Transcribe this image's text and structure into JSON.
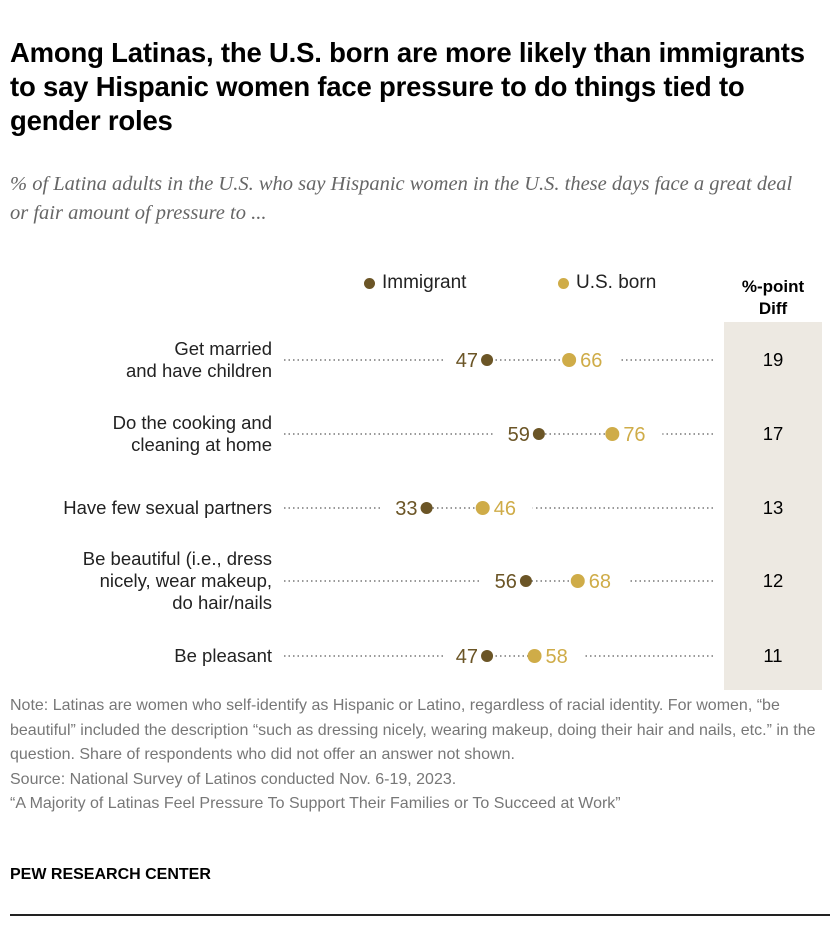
{
  "title": "Among Latinas, the U.S. born are more likely than immigrants to say Hispanic women face pressure to do things tied to gender roles",
  "subtitle": "% of Latina adults in the U.S. who say Hispanic women in the U.S. these days face a great deal or fair amount of pressure to ...",
  "chart_data": {
    "type": "dot",
    "xlim": [
      0,
      100
    ],
    "colors": {
      "Immigrant": "#6b5526",
      "U.S. born": "#cfac48",
      "diff_bg": "#ede9e2"
    },
    "legend": [
      "Immigrant",
      "U.S. born"
    ],
    "diff_header": [
      "%-point",
      "Diff"
    ],
    "categories": [
      {
        "label": [
          "Get married",
          "and have children"
        ],
        "immigrant": 47,
        "us_born": 66,
        "diff": 19
      },
      {
        "label": [
          "Do the cooking and",
          "cleaning at home"
        ],
        "immigrant": 59,
        "us_born": 76,
        "diff": 17
      },
      {
        "label": [
          "Have few sexual partners"
        ],
        "immigrant": 33,
        "us_born": 46,
        "diff": 13
      },
      {
        "label": [
          "Be beautiful (i.e., dress",
          "nicely, wear makeup,",
          "do hair/nails"
        ],
        "immigrant": 56,
        "us_born": 68,
        "diff": 12
      },
      {
        "label": [
          "Be pleasant"
        ],
        "immigrant": 47,
        "us_born": 58,
        "diff": 11
      }
    ]
  },
  "notes": [
    "Note: Latinas are women who self-identify as Hispanic or Latino, regardless of racial identity. For women, “be beautiful” included the description “such as dressing nicely, wearing makeup, doing their hair and nails, etc.” in the question. Share of respondents who did not offer an answer not shown.",
    "Source: National Survey of Latinos conducted Nov. 6-19, 2023.",
    "“A Majority of Latinas Feel Pressure To Support Their Families or To Succeed at Work”"
  ],
  "brand": "PEW RESEARCH CENTER"
}
